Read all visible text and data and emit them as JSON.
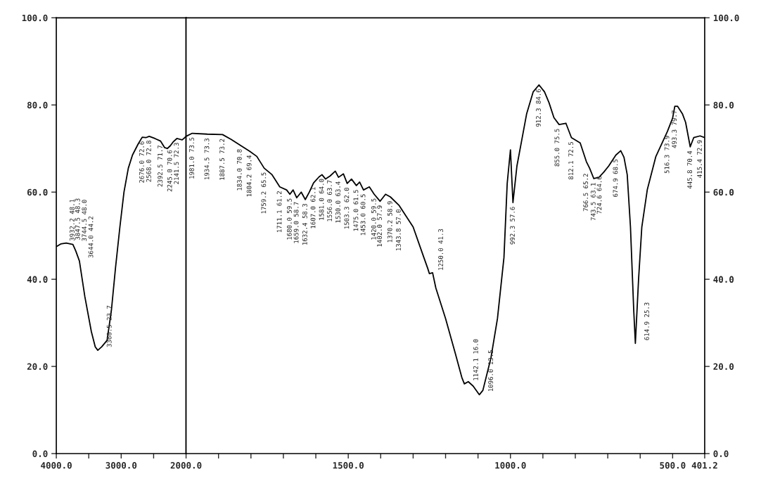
{
  "chart_data": [
    {
      "type": "line",
      "xlim": [
        4000,
        2000
      ],
      "xticks": [
        {
          "value": 4000,
          "label": "4000.0"
        },
        {
          "value": 3500,
          "label": null
        },
        {
          "value": 3000,
          "label": "3000.0"
        },
        {
          "value": 2500,
          "label": null
        }
      ],
      "ylim": [
        0,
        100
      ],
      "yticks": [
        {
          "value": 0,
          "label": "0.0"
        },
        {
          "value": 20,
          "label": "20.0"
        },
        {
          "value": 40,
          "label": "40.0"
        },
        {
          "value": 60,
          "label": "60.0"
        },
        {
          "value": 80,
          "label": "80.0"
        },
        {
          "value": 100,
          "label": "100.0"
        }
      ],
      "series": [
        {
          "color": "#000000",
          "x": [
            4000,
            3932.2,
            3847.5,
            3744.5,
            3700,
            3644.0,
            3560,
            3460,
            3400,
            3360.5,
            3300,
            3217,
            3150,
            3087,
            3020,
            2957,
            2890,
            2826,
            2740,
            2676,
            2620,
            2568,
            2480,
            2392.5,
            2330,
            2290,
            2245,
            2200,
            2141.5,
            2060,
            2020,
            2000
          ],
          "values": [
            47.5,
            48.1,
            48.3,
            48.0,
            46.5,
            44.2,
            36,
            28,
            24.5,
            23.7,
            24.5,
            26,
            33,
            42.7,
            52,
            60,
            65.5,
            68.5,
            71,
            72.6,
            72.5,
            72.8,
            72.3,
            71.7,
            70.2,
            70.0,
            70.6,
            71.5,
            72.3,
            72.0,
            72.5,
            72.8
          ]
        }
      ],
      "annotations": [
        {
          "text": "3932.2 48.1",
          "x": 3932.2,
          "y": 48.1
        },
        {
          "text": "3847.5 48.3",
          "x": 3847.5,
          "y": 48.3
        },
        {
          "text": "3744.5 48.0",
          "x": 3744.5,
          "y": 48.0
        },
        {
          "text": "3644.0 44.2",
          "x": 3644.0,
          "y": 44.2
        },
        {
          "text": "3360.5 23.7",
          "x": 3360.5,
          "y": 23.7
        },
        {
          "text": "2676.0 72.6",
          "x": 2676.0,
          "y": 72.6
        },
        {
          "text": "2568.0 72.8",
          "x": 2568.0,
          "y": 72.8
        },
        {
          "text": "2392.5 71.7",
          "x": 2392.5,
          "y": 71.7
        },
        {
          "text": "2245.0 70.6",
          "x": 2245.0,
          "y": 70.6
        },
        {
          "text": "2141.5 72.3",
          "x": 2141.5,
          "y": 72.3
        }
      ]
    },
    {
      "type": "line",
      "xlim": [
        2000,
        401.2
      ],
      "xticks": [
        {
          "value": 2000,
          "label": "2000.0"
        },
        {
          "value": 1900,
          "label": null
        },
        {
          "value": 1800,
          "label": null
        },
        {
          "value": 1700,
          "label": null
        },
        {
          "value": 1600,
          "label": null
        },
        {
          "value": 1500,
          "label": "1500.0"
        },
        {
          "value": 1400,
          "label": null
        },
        {
          "value": 1300,
          "label": null
        },
        {
          "value": 1200,
          "label": null
        },
        {
          "value": 1100,
          "label": null
        },
        {
          "value": 1000,
          "label": "1000.0"
        },
        {
          "value": 900,
          "label": null
        },
        {
          "value": 800,
          "label": null
        },
        {
          "value": 700,
          "label": null
        },
        {
          "value": 600,
          "label": null
        },
        {
          "value": 500,
          "label": "500.0"
        },
        {
          "value": 401.2,
          "label": "401.2"
        }
      ],
      "ylim": [
        0,
        100
      ],
      "yticks": [
        {
          "value": 0,
          "label": "0.0"
        },
        {
          "value": 20,
          "label": "20.0"
        },
        {
          "value": 40,
          "label": "40.0"
        },
        {
          "value": 60,
          "label": "60.0"
        },
        {
          "value": 80,
          "label": "80.0"
        },
        {
          "value": 100,
          "label": "100.0"
        }
      ],
      "series": [
        {
          "color": "#000000",
          "x": [
            2000,
            1981,
            1934.5,
            1887.5,
            1861,
            1834,
            1804.2,
            1782,
            1759.2,
            1735,
            1711.1,
            1690,
            1680,
            1670,
            1659,
            1645,
            1632.4,
            1620,
            1607,
            1590,
            1581,
            1570,
            1556,
            1540,
            1530,
            1515,
            1503.3,
            1490,
            1475,
            1465,
            1453,
            1435,
            1420,
            1402,
            1385,
            1370.2,
            1343.8,
            1300,
            1266,
            1255,
            1250,
            1240,
            1230,
            1200,
            1170,
            1150,
            1142.1,
            1130,
            1115,
            1096,
            1085,
            1060,
            1040,
            1020,
            1010,
            1000,
            992.3,
            980,
            965,
            950,
            930,
            912,
            895,
            881,
            866,
            850,
            829,
            812,
            785,
            766,
            756,
            743,
            727,
            712,
            697,
            675,
            660,
            650,
            640,
            630,
            620,
            614.9,
            605,
            595,
            578,
            552,
            516.3,
            500,
            493.3,
            485,
            470,
            460,
            445.8,
            435,
            415.4,
            401.2
          ],
          "values": [
            72.8,
            73.5,
            73.3,
            73.2,
            72.1,
            70.8,
            69.4,
            68.2,
            65.5,
            64,
            61.2,
            60.5,
            59.5,
            60.5,
            58.7,
            60,
            58.3,
            60,
            62.1,
            63.5,
            64,
            63,
            63.7,
            64.8,
            63.4,
            64.2,
            62.0,
            63,
            61.5,
            62.3,
            60.5,
            61.2,
            59.5,
            57.9,
            59.5,
            58.9,
            57.0,
            52,
            44.8,
            42.5,
            41.3,
            41.5,
            38,
            31,
            23,
            17.5,
            16.0,
            16.5,
            15.5,
            13.5,
            14.5,
            22,
            31,
            45,
            62,
            69.7,
            57.6,
            66,
            72,
            78,
            83,
            84.6,
            83,
            80.5,
            77.1,
            75.5,
            75.8,
            72.5,
            71.3,
            67,
            65.5,
            63.1,
            63.4,
            64.6,
            66,
            68.5,
            69.5,
            68,
            64,
            52,
            33,
            25.3,
            40,
            52,
            60.6,
            68.1,
            73.9,
            77,
            79.7,
            79.7,
            78,
            76,
            70.4,
            72.5,
            72.9,
            72.5
          ]
        }
      ],
      "annotations": [
        {
          "text": "1981.0 73.5",
          "x": 1981.0,
          "y": 73.5
        },
        {
          "text": "1934.5 73.3",
          "x": 1934.5,
          "y": 73.3
        },
        {
          "text": "1887.5 73.2",
          "x": 1887.5,
          "y": 73.2
        },
        {
          "text": "1834.0 70.8",
          "x": 1834.0,
          "y": 70.8
        },
        {
          "text": "1804.2 69.4",
          "x": 1804.2,
          "y": 69.4
        },
        {
          "text": "1759.2 65.5",
          "x": 1759.2,
          "y": 65.5
        },
        {
          "text": "1711.1 61.2",
          "x": 1711.1,
          "y": 61.2
        },
        {
          "text": "1680.0 59.5",
          "x": 1680.0,
          "y": 59.5
        },
        {
          "text": "1659.0 58.7",
          "x": 1659.0,
          "y": 58.7
        },
        {
          "text": "1632.4 58.3",
          "x": 1632.4,
          "y": 58.3
        },
        {
          "text": "1607.0 62.1",
          "x": 1607.0,
          "y": 62.1
        },
        {
          "text": "1581.0 64.0",
          "x": 1581.0,
          "y": 64.0
        },
        {
          "text": "1556.0 63.7",
          "x": 1556.0,
          "y": 63.7
        },
        {
          "text": "1530.0 63.4",
          "x": 1530.0,
          "y": 63.4
        },
        {
          "text": "1503.3 62.0",
          "x": 1503.3,
          "y": 62.0
        },
        {
          "text": "1475.0 61.5",
          "x": 1475.0,
          "y": 61.5
        },
        {
          "text": "1453.0 60.5",
          "x": 1453.0,
          "y": 60.5
        },
        {
          "text": "1420.0 59.5",
          "x": 1420.0,
          "y": 59.5
        },
        {
          "text": "1402.0 57.9",
          "x": 1402.0,
          "y": 57.9
        },
        {
          "text": "1370.2 58.9",
          "x": 1370.2,
          "y": 58.9
        },
        {
          "text": "1343.8 57.0",
          "x": 1343.8,
          "y": 57.0
        },
        {
          "text": "1250.0 41.3",
          "x": 1250.0,
          "y": 41.3
        },
        {
          "text": "1142.1 16.0",
          "x": 1142.1,
          "y": 16.0
        },
        {
          "text": "1096.0 13.5",
          "x": 1096.0,
          "y": 13.5
        },
        {
          "text": "992.3 57.6",
          "x": 992.3,
          "y": 57.6
        },
        {
          "text": "912.3 84.6",
          "x": 912.3,
          "y": 84.6
        },
        {
          "text": "855.0 75.5",
          "x": 855.0,
          "y": 75.5
        },
        {
          "text": "812.1 72.5",
          "x": 812.1,
          "y": 72.5
        },
        {
          "text": "766.5 65.2",
          "x": 766.5,
          "y": 65.2
        },
        {
          "text": "743.5 63.1",
          "x": 743.5,
          "y": 63.1
        },
        {
          "text": "724.6 64.6",
          "x": 724.6,
          "y": 64.6
        },
        {
          "text": "674.9 68.5",
          "x": 674.9,
          "y": 68.5
        },
        {
          "text": "614.9 25.3",
          "x": 614.9,
          "y": 25.3
        },
        {
          "text": "516.3 73.9",
          "x": 516.3,
          "y": 73.9
        },
        {
          "text": "493.3 79.7",
          "x": 493.3,
          "y": 79.7
        },
        {
          "text": "445.8 70.4",
          "x": 445.8,
          "y": 70.4
        },
        {
          "text": "415.4 72.9",
          "x": 415.4,
          "y": 72.9
        }
      ]
    }
  ]
}
